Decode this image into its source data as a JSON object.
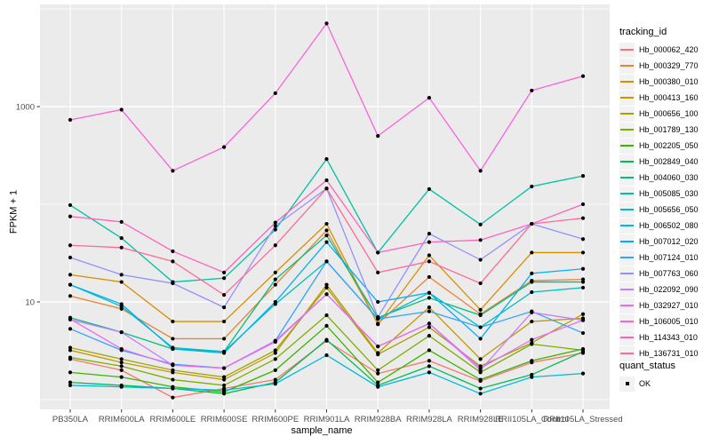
{
  "chart_data": {
    "type": "line",
    "title": "",
    "xlabel": "sample_name",
    "ylabel": "FPKM + 1",
    "y_scale": "log10",
    "ylim": [
      0.85,
      11000
    ],
    "grid": true,
    "legend_position": "right",
    "legend_title": "tracking_id",
    "legend2_title": "quant_status",
    "legend2_entry": "OK",
    "point_color": "#000000",
    "panel_bg": "#EBEBEB",
    "grid_color": "#FFFFFF",
    "tick_text_color": "#4D4D4D",
    "categories": [
      "PB350LA",
      "RRIM600LA",
      "RRIM600LE",
      "RRIM600SE",
      "RRIM600PE",
      "RRIM901LA",
      "RRIM928BA",
      "RRIM928LA",
      "RRIM928LE",
      "RRII105LA_Control",
      "RRII105LA_Stressed"
    ],
    "y_ticks": [
      {
        "label": "1000",
        "value": 1000
      },
      {
        "label": "10",
        "value": 10
      }
    ],
    "y_minor_grid": [
      1,
      100,
      10000
    ],
    "series": [
      {
        "name": "Hb_000062_420",
        "color": "#F8766D",
        "values": [
          2.6,
          2.0,
          1.05,
          1.3,
          1.6,
          4.0,
          1.85,
          2.5,
          1.55,
          2.4,
          3.0
        ]
      },
      {
        "name": "Hb_000329_770",
        "color": "#EA8331",
        "values": [
          11.5,
          8.5,
          4.2,
          4.2,
          15,
          54,
          6.0,
          18,
          7.5,
          16.5,
          17
        ]
      },
      {
        "name": "Hb_000380_010",
        "color": "#D89000",
        "values": [
          19,
          16,
          6.3,
          6.3,
          20,
          63,
          5.9,
          30,
          8.3,
          32,
          32
        ]
      },
      {
        "name": "Hb_000413_160",
        "color": "#C09B00",
        "values": [
          3.2,
          2.4,
          1.9,
          1.6,
          3.0,
          15,
          3.0,
          8.8,
          2.6,
          6.3,
          6.8
        ]
      },
      {
        "name": "Hb_000656_100",
        "color": "#A3A500",
        "values": [
          3.4,
          2.6,
          2.0,
          1.7,
          3.2,
          14,
          2.9,
          5.5,
          2.2,
          3.8,
          7.5
        ]
      },
      {
        "name": "Hb_001789_130",
        "color": "#7CAE00",
        "values": [
          2.7,
          2.2,
          1.6,
          1.4,
          2.6,
          7.3,
          2.0,
          4.5,
          1.9,
          3.7,
          3.2
        ]
      },
      {
        "name": "Hb_002205_050",
        "color": "#39B600",
        "values": [
          1.9,
          1.7,
          1.35,
          1.2,
          2.0,
          5.7,
          1.5,
          3.2,
          1.6,
          2.5,
          3.3
        ]
      },
      {
        "name": "Hb_002849_040",
        "color": "#00BB4E",
        "values": [
          1.5,
          1.4,
          1.3,
          1.15,
          1.5,
          4.1,
          1.4,
          2.2,
          1.3,
          1.8,
          3.1
        ]
      },
      {
        "name": "Hb_004060_030",
        "color": "#00BF7D",
        "values": [
          6.9,
          4.9,
          3.3,
          3.1,
          17,
          48,
          6.9,
          11,
          7.3,
          16,
          16
        ]
      },
      {
        "name": "Hb_005085_030",
        "color": "#00C1A3",
        "values": [
          98,
          45,
          16,
          17.5,
          55,
          290,
          32,
          143,
          62,
          152,
          195
        ]
      },
      {
        "name": "Hb_005656_050",
        "color": "#00BFC4",
        "values": [
          15,
          9,
          3.4,
          3.1,
          9.5,
          26,
          6.7,
          12.4,
          5.5,
          12.6,
          14
        ]
      },
      {
        "name": "Hb_006502_080",
        "color": "#00BAE0",
        "values": [
          1.4,
          1.35,
          1.3,
          1.25,
          1.45,
          2.85,
          1.35,
          1.9,
          1.15,
          1.7,
          1.85
        ]
      },
      {
        "name": "Hb_007012_020",
        "color": "#00B0F6",
        "values": [
          15,
          9.5,
          3.3,
          3.0,
          10,
          41,
          10,
          12.4,
          4.2,
          19.6,
          21.8
        ]
      },
      {
        "name": "Hb_007124_010",
        "color": "#35A2FF",
        "values": [
          5.3,
          3.2,
          2.3,
          2.1,
          4.0,
          26,
          6.7,
          8.0,
          5.5,
          8.0,
          4.8
        ]
      },
      {
        "name": "Hb_007763_060",
        "color": "#9590FF",
        "values": [
          28.5,
          19,
          15.5,
          8.8,
          60,
          145,
          7.0,
          50,
          27,
          63,
          44
        ]
      },
      {
        "name": "Hb_022092_090",
        "color": "#C77CFF",
        "values": [
          6.6,
          4.9,
          2.25,
          2.1,
          4.0,
          12,
          3.5,
          6.0,
          2.0,
          7.8,
          6.5
        ]
      },
      {
        "name": "Hb_032927_010",
        "color": "#E76BF3",
        "values": [
          6.7,
          3.3,
          2.25,
          2.1,
          3.9,
          12,
          3.5,
          6.0,
          2.1,
          4.1,
          6.5
        ]
      },
      {
        "name": "Hb_106005_010",
        "color": "#FA62DB",
        "values": [
          730,
          930,
          220,
          385,
          1370,
          7100,
          500,
          1230,
          220,
          1460,
          2050
        ]
      },
      {
        "name": "Hb_114343_010",
        "color": "#FF62BC",
        "values": [
          75,
          66,
          33,
          20,
          65,
          176,
          32,
          41,
          43,
          63,
          100
        ]
      },
      {
        "name": "Hb_136731_010",
        "color": "#FF6A98",
        "values": [
          38,
          36,
          26,
          11.8,
          38,
          145,
          20,
          26,
          15.5,
          63,
          72
        ]
      }
    ]
  }
}
